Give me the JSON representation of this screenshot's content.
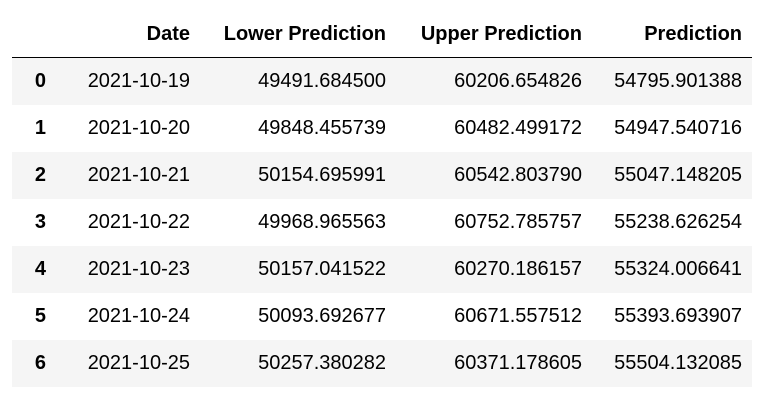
{
  "table": {
    "index_header": "",
    "columns": [
      "Date",
      "Lower Prediction",
      "Upper Prediction",
      "Prediction"
    ],
    "rows": [
      {
        "index": "0",
        "date": "2021-10-19",
        "lower": "49491.684500",
        "upper": "60206.654826",
        "prediction": "54795.901388"
      },
      {
        "index": "1",
        "date": "2021-10-20",
        "lower": "49848.455739",
        "upper": "60482.499172",
        "prediction": "54947.540716"
      },
      {
        "index": "2",
        "date": "2021-10-21",
        "lower": "50154.695991",
        "upper": "60542.803790",
        "prediction": "55047.148205"
      },
      {
        "index": "3",
        "date": "2021-10-22",
        "lower": "49968.965563",
        "upper": "60752.785757",
        "prediction": "55238.626254"
      },
      {
        "index": "4",
        "date": "2021-10-23",
        "lower": "50157.041522",
        "upper": "60270.186157",
        "prediction": "55324.006641"
      },
      {
        "index": "5",
        "date": "2021-10-24",
        "lower": "50093.692677",
        "upper": "60671.557512",
        "prediction": "55393.693907"
      },
      {
        "index": "6",
        "date": "2021-10-25",
        "lower": "50257.380282",
        "upper": "60371.178605",
        "prediction": "55504.132085"
      }
    ]
  },
  "style": {
    "stripe_color": "#f5f5f5",
    "header_rule_color": "#000000"
  }
}
